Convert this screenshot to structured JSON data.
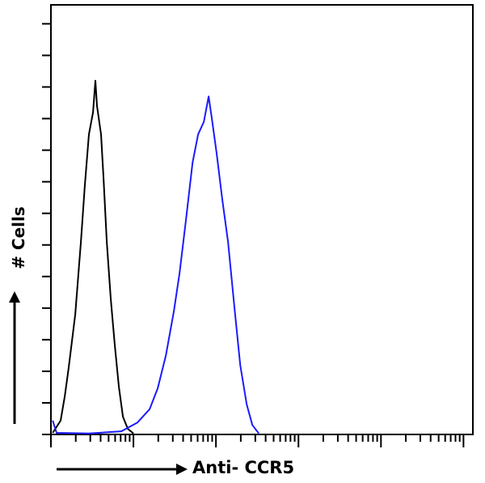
{
  "chart_data": {
    "type": "line",
    "title": "",
    "xlabel": "Anti- CCR5",
    "ylabel": "# Cells",
    "x_scale": "log",
    "xlim": [
      1,
      130000
    ],
    "ylim": [
      0,
      136
    ],
    "y_ticks": [
      0,
      10,
      20,
      30,
      40,
      50,
      60,
      70,
      80,
      90,
      100,
      110,
      120,
      130
    ],
    "grid": false,
    "series": [
      {
        "color": "#000000",
        "x": [
          1.05,
          1.31,
          1.47,
          1.64,
          1.97,
          2.31,
          2.58,
          2.89,
          3.24,
          3.46,
          3.62,
          4.05,
          4.34,
          4.75,
          5.31,
          5.95,
          6.66,
          7.46,
          8.54,
          10
        ],
        "y": [
          0.5,
          4.4,
          12,
          21,
          38,
          61,
          79,
          95,
          102,
          112,
          104,
          95,
          81,
          61,
          43,
          28,
          15,
          5.6,
          1.8,
          0.3
        ]
      },
      {
        "color": "#1a1aff",
        "x": [
          1.05,
          1.17,
          2.89,
          7.13,
          11.2,
          15.7,
          19.7,
          24.7,
          30.9,
          36.2,
          43.4,
          52,
          60.8,
          71.3,
          81.6,
          89.3,
          102,
          120,
          140,
          168,
          197,
          236,
          276,
          331
        ],
        "y": [
          4.4,
          0.5,
          0.3,
          1,
          3.8,
          8,
          14.6,
          25,
          39,
          51,
          68,
          86,
          95,
          99,
          107,
          100,
          89,
          74,
          61,
          40,
          22,
          9.5,
          3,
          0.3
        ]
      }
    ]
  }
}
